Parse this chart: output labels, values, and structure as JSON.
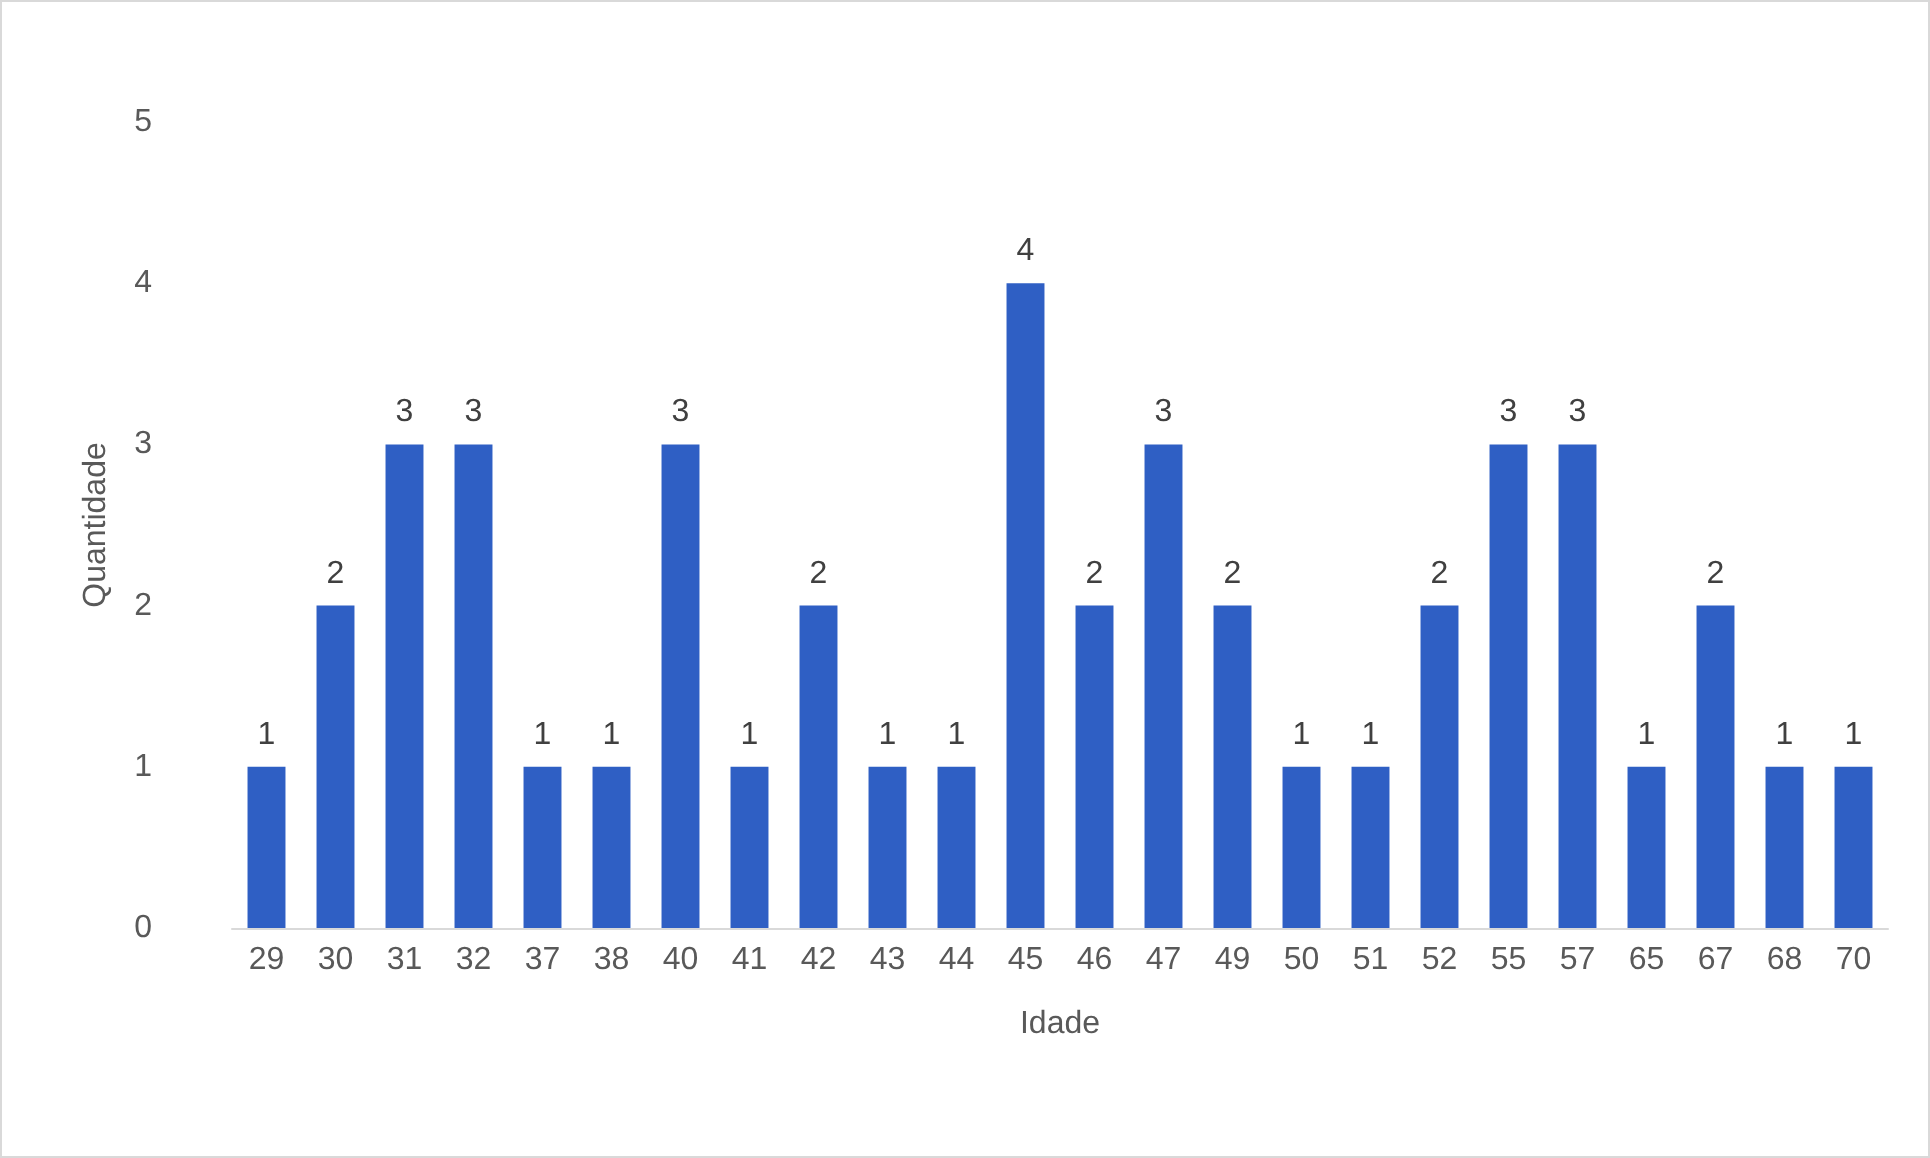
{
  "chart_data": {
    "type": "bar",
    "xlabel": "Idade",
    "ylabel": "Quantidade",
    "categories": [
      "29",
      "30",
      "31",
      "32",
      "37",
      "38",
      "40",
      "41",
      "42",
      "43",
      "44",
      "45",
      "46",
      "47",
      "49",
      "50",
      "51",
      "52",
      "55",
      "57",
      "65",
      "67",
      "68",
      "70"
    ],
    "values": [
      1,
      2,
      3,
      3,
      1,
      1,
      3,
      1,
      2,
      1,
      1,
      4,
      2,
      3,
      2,
      1,
      1,
      2,
      3,
      3,
      1,
      2,
      1,
      1
    ],
    "color": "#2f5fc4",
    "ylim": [
      0,
      5
    ],
    "yticks": [
      0,
      1,
      2,
      3,
      4,
      5
    ],
    "grid": false,
    "data_labels": true
  }
}
